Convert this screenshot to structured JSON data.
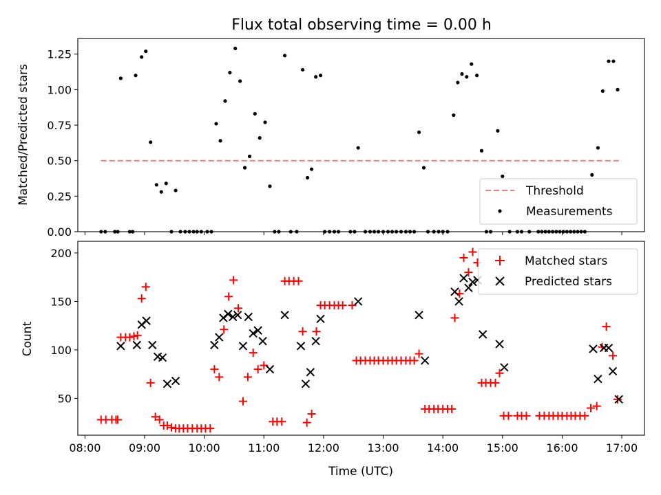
{
  "figure": {
    "title": "Flux total observing time = 0.00 h",
    "shared_xlabel": "Time (UTC)",
    "x_tick_labels": [
      "08:00",
      "09:00",
      "10:00",
      "11:00",
      "12:00",
      "13:00",
      "14:00",
      "15:00",
      "16:00",
      "17:00"
    ]
  },
  "chart_data": [
    {
      "type": "scatter",
      "panel": "top",
      "ylabel": "Matched/Predicted stars",
      "xlabel": "",
      "x_unit": "UTC hour",
      "xlim": [
        7.88,
        17.38
      ],
      "ylim": [
        0,
        1.36
      ],
      "y_ticks": [
        0.0,
        0.25,
        0.5,
        0.75,
        1.0,
        1.25
      ],
      "y_tick_labels": [
        "0.00",
        "0.25",
        "0.50",
        "0.75",
        "1.00",
        "1.25"
      ],
      "legend": {
        "placement": "lower-right",
        "entries": [
          "Threshold",
          "Measurements"
        ]
      },
      "threshold": {
        "name": "Threshold",
        "y": 0.5,
        "x_range": [
          8.27,
          17.0
        ],
        "color": "#f08080",
        "style": "dashed"
      },
      "series": [
        {
          "name": "Measurements",
          "color": "#000000",
          "marker": "dot",
          "points": [
            [
              8.27,
              0
            ],
            [
              8.34,
              0
            ],
            [
              8.5,
              0
            ],
            [
              8.55,
              0
            ],
            [
              8.6,
              1.08
            ],
            [
              8.75,
              0
            ],
            [
              8.8,
              0
            ],
            [
              8.85,
              1.1
            ],
            [
              8.95,
              1.23
            ],
            [
              9.02,
              1.27
            ],
            [
              9.1,
              0.63
            ],
            [
              9.2,
              0.33
            ],
            [
              9.28,
              0.28
            ],
            [
              9.36,
              0.34
            ],
            [
              9.45,
              0
            ],
            [
              9.52,
              0.29
            ],
            [
              9.6,
              0
            ],
            [
              9.68,
              0
            ],
            [
              9.75,
              0
            ],
            [
              9.82,
              0
            ],
            [
              9.88,
              0
            ],
            [
              9.95,
              0
            ],
            [
              10.05,
              0
            ],
            [
              10.12,
              0
            ],
            [
              10.2,
              0.76
            ],
            [
              10.27,
              0.64
            ],
            [
              10.35,
              0.92
            ],
            [
              10.43,
              1.12
            ],
            [
              10.52,
              1.29
            ],
            [
              10.6,
              1.06
            ],
            [
              10.68,
              0.45
            ],
            [
              10.76,
              0.53
            ],
            [
              10.85,
              0.83
            ],
            [
              10.93,
              0.66
            ],
            [
              11.02,
              0.77
            ],
            [
              11.1,
              0.32
            ],
            [
              11.18,
              0
            ],
            [
              11.25,
              0
            ],
            [
              11.35,
              1.24
            ],
            [
              11.45,
              0
            ],
            [
              11.55,
              0
            ],
            [
              11.65,
              1.14
            ],
            [
              11.73,
              0.38
            ],
            [
              11.8,
              0.44
            ],
            [
              11.87,
              1.09
            ],
            [
              11.95,
              1.1
            ],
            [
              12.02,
              0
            ],
            [
              12.1,
              0
            ],
            [
              12.18,
              0
            ],
            [
              12.25,
              0
            ],
            [
              12.45,
              0
            ],
            [
              12.52,
              0
            ],
            [
              12.58,
              0.59
            ],
            [
              12.7,
              0
            ],
            [
              12.78,
              0
            ],
            [
              12.85,
              0
            ],
            [
              12.92,
              0
            ],
            [
              13.0,
              0
            ],
            [
              13.08,
              0
            ],
            [
              13.15,
              0
            ],
            [
              13.22,
              0
            ],
            [
              13.3,
              0
            ],
            [
              13.38,
              0
            ],
            [
              13.45,
              0
            ],
            [
              13.52,
              0
            ],
            [
              13.6,
              0.7
            ],
            [
              13.68,
              0.45
            ],
            [
              13.75,
              0
            ],
            [
              13.85,
              0
            ],
            [
              13.93,
              0
            ],
            [
              14.0,
              0
            ],
            [
              14.08,
              0
            ],
            [
              14.18,
              0.82
            ],
            [
              14.25,
              1.05
            ],
            [
              14.32,
              1.11
            ],
            [
              14.4,
              1.09
            ],
            [
              14.48,
              1.18
            ],
            [
              14.57,
              1.1
            ],
            [
              14.65,
              0.57
            ],
            [
              14.73,
              0
            ],
            [
              14.8,
              0
            ],
            [
              14.92,
              0.71
            ],
            [
              15.0,
              0.39
            ],
            [
              15.12,
              0
            ],
            [
              15.25,
              0
            ],
            [
              15.32,
              0
            ],
            [
              15.45,
              0
            ],
            [
              15.6,
              0
            ],
            [
              15.66,
              0
            ],
            [
              15.72,
              0
            ],
            [
              15.78,
              0
            ],
            [
              15.84,
              0
            ],
            [
              15.9,
              0
            ],
            [
              15.96,
              0
            ],
            [
              16.02,
              0
            ],
            [
              16.08,
              0
            ],
            [
              16.14,
              0
            ],
            [
              16.2,
              0
            ],
            [
              16.26,
              0
            ],
            [
              16.32,
              0
            ],
            [
              16.38,
              0
            ],
            [
              16.5,
              0.4
            ],
            [
              16.6,
              0.59
            ],
            [
              16.68,
              0.99
            ],
            [
              16.78,
              1.2
            ],
            [
              16.86,
              1.2
            ],
            [
              16.93,
              1.0
            ]
          ]
        }
      ]
    },
    {
      "type": "scatter",
      "panel": "bottom",
      "xlabel": "Time (UTC)",
      "ylabel": "Count",
      "x_unit": "UTC hour",
      "xlim": [
        7.88,
        17.38
      ],
      "ylim": [
        12,
        212
      ],
      "y_ticks": [
        50,
        100,
        150,
        200
      ],
      "y_tick_labels": [
        "50",
        "100",
        "150",
        "200"
      ],
      "legend": {
        "placement": "upper-right",
        "entries": [
          "Matched stars",
          "Predicted stars"
        ]
      },
      "series": [
        {
          "name": "Matched stars",
          "color": "#ff0000",
          "marker": "plus",
          "points": [
            [
              8.27,
              28
            ],
            [
              8.35,
              28
            ],
            [
              8.45,
              28
            ],
            [
              8.52,
              28
            ],
            [
              8.55,
              28
            ],
            [
              8.6,
              113
            ],
            [
              8.68,
              113
            ],
            [
              8.75,
              113
            ],
            [
              8.82,
              114
            ],
            [
              8.88,
              115
            ],
            [
              8.95,
              153
            ],
            [
              9.02,
              165
            ],
            [
              9.1,
              66
            ],
            [
              9.18,
              31
            ],
            [
              9.25,
              28
            ],
            [
              9.32,
              22
            ],
            [
              9.38,
              22
            ],
            [
              9.45,
              20
            ],
            [
              9.52,
              19
            ],
            [
              9.58,
              19
            ],
            [
              9.65,
              19
            ],
            [
              9.72,
              19
            ],
            [
              9.8,
              19
            ],
            [
              9.88,
              19
            ],
            [
              9.95,
              19
            ],
            [
              10.02,
              19
            ],
            [
              10.1,
              19
            ],
            [
              10.17,
              80
            ],
            [
              10.25,
              72
            ],
            [
              10.33,
              121
            ],
            [
              10.41,
              155
            ],
            [
              10.49,
              172
            ],
            [
              10.57,
              143
            ],
            [
              10.65,
              47
            ],
            [
              10.73,
              72
            ],
            [
              10.82,
              97
            ],
            [
              10.9,
              80
            ],
            [
              11.0,
              84
            ],
            [
              11.15,
              26
            ],
            [
              11.22,
              26
            ],
            [
              11.3,
              26
            ],
            [
              11.35,
              171
            ],
            [
              11.42,
              171
            ],
            [
              11.5,
              171
            ],
            [
              11.58,
              171
            ],
            [
              11.65,
              119
            ],
            [
              11.72,
              25
            ],
            [
              11.8,
              34
            ],
            [
              11.88,
              119
            ],
            [
              11.95,
              146
            ],
            [
              12.02,
              146
            ],
            [
              12.1,
              146
            ],
            [
              12.18,
              146
            ],
            [
              12.25,
              146
            ],
            [
              12.32,
              146
            ],
            [
              12.48,
              146
            ],
            [
              12.55,
              89
            ],
            [
              12.62,
              89
            ],
            [
              12.7,
              89
            ],
            [
              12.78,
              89
            ],
            [
              12.85,
              89
            ],
            [
              12.92,
              89
            ],
            [
              13.0,
              89
            ],
            [
              13.08,
              89
            ],
            [
              13.15,
              89
            ],
            [
              13.22,
              89
            ],
            [
              13.3,
              89
            ],
            [
              13.38,
              89
            ],
            [
              13.45,
              89
            ],
            [
              13.52,
              89
            ],
            [
              13.6,
              96
            ],
            [
              13.7,
              39
            ],
            [
              13.77,
              39
            ],
            [
              13.85,
              39
            ],
            [
              13.92,
              39
            ],
            [
              14.0,
              39
            ],
            [
              14.08,
              39
            ],
            [
              14.15,
              39
            ],
            [
              14.2,
              133
            ],
            [
              14.28,
              158
            ],
            [
              14.35,
              195
            ],
            [
              14.43,
              180
            ],
            [
              14.5,
              201
            ],
            [
              14.58,
              190
            ],
            [
              14.65,
              66
            ],
            [
              14.72,
              66
            ],
            [
              14.8,
              66
            ],
            [
              14.88,
              66
            ],
            [
              14.95,
              76
            ],
            [
              15.02,
              32
            ],
            [
              15.1,
              32
            ],
            [
              15.25,
              32
            ],
            [
              15.32,
              32
            ],
            [
              15.4,
              32
            ],
            [
              15.62,
              32
            ],
            [
              15.7,
              32
            ],
            [
              15.78,
              32
            ],
            [
              15.85,
              32
            ],
            [
              15.93,
              32
            ],
            [
              16.0,
              32
            ],
            [
              16.08,
              32
            ],
            [
              16.15,
              32
            ],
            [
              16.22,
              32
            ],
            [
              16.3,
              32
            ],
            [
              16.38,
              32
            ],
            [
              16.48,
              40
            ],
            [
              16.58,
              42
            ],
            [
              16.67,
              103
            ],
            [
              16.74,
              124
            ],
            [
              16.85,
              94
            ],
            [
              16.93,
              49
            ]
          ]
        },
        {
          "name": "Predicted stars",
          "color": "#000000",
          "marker": "x",
          "points": [
            [
              8.6,
              104
            ],
            [
              8.87,
              105
            ],
            [
              8.95,
              126
            ],
            [
              9.03,
              130
            ],
            [
              9.13,
              105
            ],
            [
              9.22,
              93
            ],
            [
              9.3,
              92
            ],
            [
              9.38,
              65
            ],
            [
              9.52,
              68
            ],
            [
              10.17,
              105
            ],
            [
              10.25,
              113
            ],
            [
              10.32,
              133
            ],
            [
              10.4,
              137
            ],
            [
              10.48,
              134
            ],
            [
              10.56,
              136
            ],
            [
              10.65,
              104
            ],
            [
              10.74,
              134
            ],
            [
              10.82,
              117
            ],
            [
              10.9,
              120
            ],
            [
              10.98,
              109
            ],
            [
              11.1,
              80
            ],
            [
              11.35,
              136
            ],
            [
              11.62,
              104
            ],
            [
              11.7,
              65
            ],
            [
              11.78,
              77
            ],
            [
              11.87,
              109
            ],
            [
              11.95,
              132
            ],
            [
              12.58,
              150
            ],
            [
              13.6,
              136
            ],
            [
              13.7,
              89
            ],
            [
              14.2,
              160
            ],
            [
              14.27,
              150
            ],
            [
              14.35,
              174
            ],
            [
              14.43,
              164
            ],
            [
              14.5,
              170
            ],
            [
              14.58,
              172
            ],
            [
              14.67,
              116
            ],
            [
              14.95,
              106
            ],
            [
              15.03,
              82
            ],
            [
              16.52,
              101
            ],
            [
              16.6,
              70
            ],
            [
              16.7,
              102
            ],
            [
              16.78,
              102
            ],
            [
              16.85,
              78
            ],
            [
              16.95,
              49
            ]
          ]
        }
      ]
    }
  ]
}
